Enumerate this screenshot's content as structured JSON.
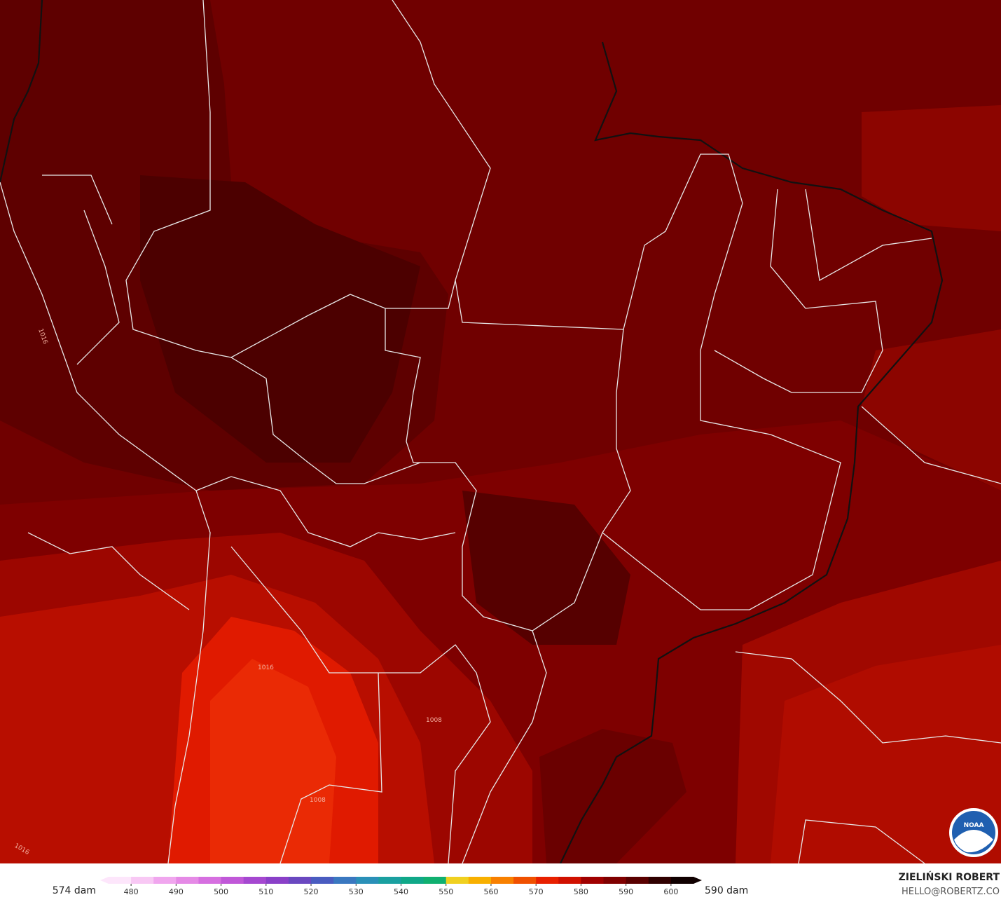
{
  "map": {
    "contour_labels": [
      "1016",
      "1016",
      "1008",
      "1008",
      "1016"
    ],
    "logo": "NOAA"
  },
  "colorbar": {
    "min_label": "574 dam",
    "max_label": "590 dam",
    "lim": [
      475,
      605
    ],
    "ticks": [
      480,
      490,
      500,
      510,
      520,
      530,
      540,
      550,
      560,
      570,
      580,
      590,
      600
    ],
    "colors": [
      "#fde6fb",
      "#f8c8f4",
      "#f0a6ee",
      "#e58ae6",
      "#d66fe0",
      "#c058d8",
      "#a548d0",
      "#8a40c8",
      "#6a48c0",
      "#4a5cc0",
      "#3a78c0",
      "#2a90b8",
      "#1aa0a0",
      "#10a888",
      "#10b070",
      "#f0d020",
      "#f8b000",
      "#f88000",
      "#f05000",
      "#e82000",
      "#d01000",
      "#a00000",
      "#800000",
      "#5a0000",
      "#300000",
      "#100000"
    ]
  },
  "credit": {
    "author": "ZIELIŃSKI ROBERT",
    "email": "HELLO@ROBERTZ.CO"
  }
}
